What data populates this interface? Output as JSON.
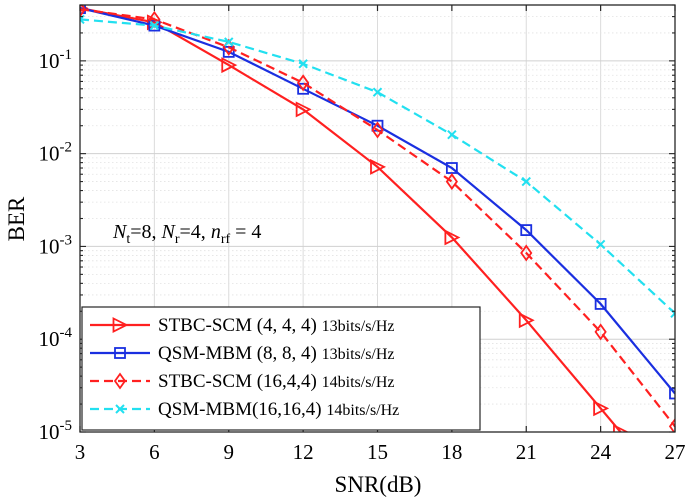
{
  "chart_data": {
    "type": "line",
    "xlabel": "SNR(dB)",
    "ylabel": "BER",
    "yscale": "log",
    "xlim": [
      3,
      27
    ],
    "ylim": [
      1e-05,
      0.4
    ],
    "x_ticks": [
      3,
      6,
      9,
      12,
      15,
      18,
      21,
      24,
      27
    ],
    "y_ticks": [
      {
        "value": 0.1,
        "base": "10",
        "exp": "-1"
      },
      {
        "value": 0.01,
        "base": "10",
        "exp": "-2"
      },
      {
        "value": 0.001,
        "base": "10",
        "exp": "-3"
      },
      {
        "value": 0.0001,
        "base": "10",
        "exp": "-4"
      },
      {
        "value": 1e-05,
        "base": "10",
        "exp": "-5"
      }
    ],
    "grid": true,
    "legend_position": "bottom-left",
    "annotation": {
      "parts": [
        {
          "text": "N",
          "style": "italic"
        },
        {
          "text": "t",
          "style": "sub"
        },
        {
          "text": "=8, ",
          "style": "normal"
        },
        {
          "text": "N",
          "style": "italic"
        },
        {
          "text": "r",
          "style": "sub"
        },
        {
          "text": "=4, ",
          "style": "normal"
        },
        {
          "text": "n",
          "style": "italic"
        },
        {
          "text": "rf",
          "style": "sub"
        },
        {
          "text": " = 4",
          "style": "normal"
        }
      ]
    },
    "series": [
      {
        "name": "STBC-SCM (4, 4, 4)",
        "unit": "13bits/s/Hz",
        "color": "#ff2020",
        "dash": "solid",
        "marker": "triangle-right",
        "x": [
          3,
          6,
          9,
          12,
          15,
          18,
          21,
          24,
          24.8
        ],
        "y": [
          0.37,
          0.26,
          0.09,
          0.03,
          0.0072,
          0.00125,
          0.00016,
          1.8e-05,
          1e-05
        ]
      },
      {
        "name": "QSM-MBM (8, 8, 4)",
        "unit": "13bits/s/Hz",
        "color": "#1a2fe0",
        "dash": "solid",
        "marker": "square",
        "x": [
          3,
          6,
          9,
          12,
          15,
          18,
          21,
          24,
          27
        ],
        "y": [
          0.37,
          0.24,
          0.125,
          0.05,
          0.02,
          0.007,
          0.0015,
          0.00024,
          2.6e-05
        ]
      },
      {
        "name": "STBC-SCM (16,4,4)",
        "unit": "14bits/s/Hz",
        "color": "#ff2020",
        "dash": "dashed",
        "marker": "diamond",
        "x": [
          3,
          6,
          9,
          12,
          15,
          18,
          21,
          24,
          27
        ],
        "y": [
          0.36,
          0.28,
          0.14,
          0.058,
          0.018,
          0.005,
          0.00085,
          0.00012,
          1.15e-05
        ]
      },
      {
        "name": "QSM-MBM(16,16,4)",
        "unit": "14bits/s/Hz",
        "color": "#22e0f0",
        "dash": "dashed",
        "marker": "x",
        "x": [
          3,
          6,
          9,
          12,
          15,
          18,
          21,
          24,
          27
        ],
        "y": [
          0.28,
          0.24,
          0.16,
          0.093,
          0.046,
          0.016,
          0.005,
          0.00105,
          0.00019
        ]
      }
    ]
  }
}
